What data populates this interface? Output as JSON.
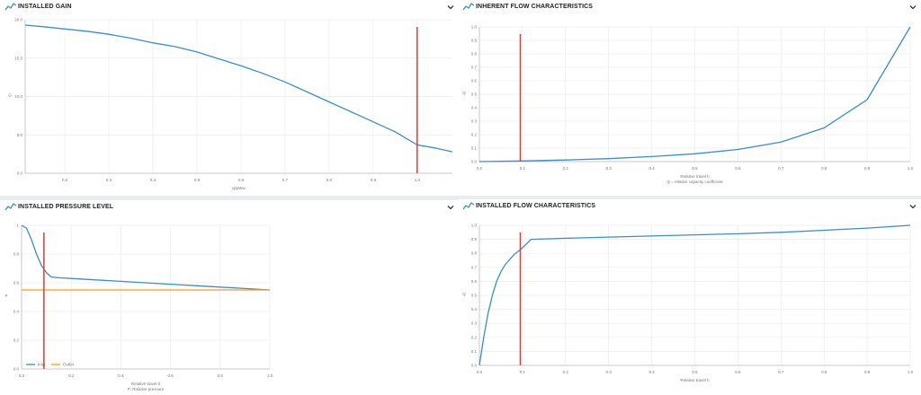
{
  "panels": {
    "installed_gain": {
      "title": "INSTALLED GAIN"
    },
    "inherent_flow": {
      "title": "INHERENT FLOW CHARACTERISTICS"
    },
    "installed_pressure": {
      "title": "INSTALLED PRESSURE LEVEL"
    },
    "installed_flow": {
      "title": "INSTALLED FLOW CHARACTERISTICS"
    }
  },
  "colors": {
    "series": "#3a8ec8",
    "marker": "#e53935",
    "outlet": "#f59b2a",
    "grid": "#ececec",
    "axis": "#bdbdbd"
  },
  "icons": {
    "header": "line-chart-icon",
    "collapse": "chevron-down-icon"
  },
  "chart_data": [
    {
      "id": "installed_gain",
      "type": "line",
      "xlabel": "q/qMax",
      "ylabel": "G",
      "xlim": [
        0.11,
        1.08
      ],
      "ylim": [
        0,
        20
      ],
      "xticks": [
        "0.2",
        "0.3",
        "0.4",
        "0.5",
        "0.6",
        "0.7",
        "0.8",
        "0.9",
        "1.0"
      ],
      "xtick_values": [
        0.2,
        0.3,
        0.4,
        0.5,
        0.6,
        0.7,
        0.8,
        0.9,
        1.0
      ],
      "yticks": [
        "0.0",
        "5.0",
        "10.0",
        "15.0",
        "20.0"
      ],
      "ytick_values": [
        0,
        5,
        10,
        15,
        20
      ],
      "series": [
        {
          "x": [
            0.11,
            0.15,
            0.2,
            0.25,
            0.3,
            0.35,
            0.4,
            0.45,
            0.5,
            0.55,
            0.6,
            0.65,
            0.7,
            0.75,
            0.8,
            0.85,
            0.9,
            0.95,
            1.0,
            1.04,
            1.08
          ],
          "y": [
            19.3,
            19.1,
            18.8,
            18.5,
            18.1,
            17.6,
            17.0,
            16.5,
            15.8,
            14.9,
            14.0,
            13.0,
            11.9,
            10.6,
            9.3,
            8.0,
            6.7,
            5.4,
            3.7,
            3.3,
            2.8
          ]
        }
      ],
      "marker_x": 1.0
    },
    {
      "id": "inherent_flow",
      "type": "line",
      "xlabel": "Relative travel h",
      "xlabel2": "Q = relative capacity coefficient",
      "ylabel": "Q",
      "xlim": [
        0,
        1.0
      ],
      "ylim": [
        0,
        1.0
      ],
      "xticks": [
        "0.0",
        "0.1",
        "0.2",
        "0.3",
        "0.4",
        "0.5",
        "0.6",
        "0.7",
        "0.8",
        "0.9",
        "1.0"
      ],
      "xtick_values": [
        0,
        0.1,
        0.2,
        0.3,
        0.4,
        0.5,
        0.6,
        0.7,
        0.8,
        0.9,
        1.0
      ],
      "yticks": [
        "0.0",
        "0.1",
        "0.2",
        "0.3",
        "0.4",
        "0.5",
        "0.6",
        "0.7",
        "0.8",
        "0.9",
        "1.0"
      ],
      "ytick_values": [
        0,
        0.1,
        0.2,
        0.3,
        0.4,
        0.5,
        0.6,
        0.7,
        0.8,
        0.9,
        1.0
      ],
      "series": [
        {
          "x": [
            0,
            0.1,
            0.2,
            0.3,
            0.4,
            0.5,
            0.6,
            0.7,
            0.8,
            0.9,
            1.0
          ],
          "y": [
            0.0,
            0.005,
            0.012,
            0.022,
            0.037,
            0.058,
            0.09,
            0.145,
            0.25,
            0.46,
            1.0
          ]
        }
      ],
      "marker_x": 0.095
    },
    {
      "id": "installed_pressure",
      "type": "line",
      "xlabel": "Relative travel h",
      "xlabel2": "P: Relative pressure",
      "ylabel": "P",
      "xlim": [
        0,
        1.0
      ],
      "ylim": [
        0,
        1.0
      ],
      "xticks": [
        "0.0",
        "0.2",
        "0.4",
        "0.6",
        "0.8",
        "1.0"
      ],
      "xtick_values": [
        0,
        0.2,
        0.4,
        0.6,
        0.8,
        1.0
      ],
      "yticks": [
        "0.0",
        "0.2",
        "0.4",
        "0.6",
        "0.8",
        "1"
      ],
      "ytick_values": [
        0,
        0.2,
        0.4,
        0.6,
        0.8,
        1.0
      ],
      "legend": [
        "Inlet",
        "Outlet"
      ],
      "series": [
        {
          "name": "Inlet",
          "x": [
            0,
            0.02,
            0.04,
            0.06,
            0.08,
            0.1,
            0.12,
            0.15,
            0.2,
            0.3,
            0.4,
            0.5,
            0.6,
            0.7,
            0.8,
            0.9,
            1.0
          ],
          "y": [
            1.0,
            0.98,
            0.9,
            0.8,
            0.72,
            0.67,
            0.64,
            0.635,
            0.63,
            0.62,
            0.61,
            0.6,
            0.59,
            0.58,
            0.57,
            0.56,
            0.55
          ]
        },
        {
          "name": "Outlet",
          "x": [
            0,
            1.0
          ],
          "y": [
            0.55,
            0.55
          ]
        }
      ],
      "marker_x": 0.09
    },
    {
      "id": "installed_flow",
      "type": "line",
      "xlabel": "Relative travel h",
      "ylabel": "Q",
      "xlim": [
        0,
        1.0
      ],
      "ylim": [
        0,
        1.0
      ],
      "xticks": [
        "0.0",
        "0.1",
        "0.2",
        "0.3",
        "0.4",
        "0.5",
        "0.6",
        "0.7",
        "0.8",
        "0.9",
        "1.0"
      ],
      "xtick_values": [
        0,
        0.1,
        0.2,
        0.3,
        0.4,
        0.5,
        0.6,
        0.7,
        0.8,
        0.9,
        1.0
      ],
      "yticks": [
        "0.0",
        "0.1",
        "0.2",
        "0.3",
        "0.4",
        "0.5",
        "0.6",
        "0.7",
        "0.8",
        "0.9",
        "1.0"
      ],
      "ytick_values": [
        0,
        0.1,
        0.2,
        0.3,
        0.4,
        0.5,
        0.6,
        0.7,
        0.8,
        0.9,
        1.0
      ],
      "series": [
        {
          "x": [
            0,
            0.01,
            0.02,
            0.03,
            0.04,
            0.05,
            0.06,
            0.08,
            0.1,
            0.12,
            0.2,
            0.3,
            0.4,
            0.5,
            0.6,
            0.7,
            0.8,
            0.9,
            1.0
          ],
          "y": [
            0.0,
            0.2,
            0.37,
            0.5,
            0.6,
            0.67,
            0.72,
            0.79,
            0.84,
            0.9,
            0.908,
            0.916,
            0.924,
            0.932,
            0.94,
            0.95,
            0.965,
            0.98,
            1.0
          ]
        }
      ],
      "marker_x": 0.095
    }
  ]
}
